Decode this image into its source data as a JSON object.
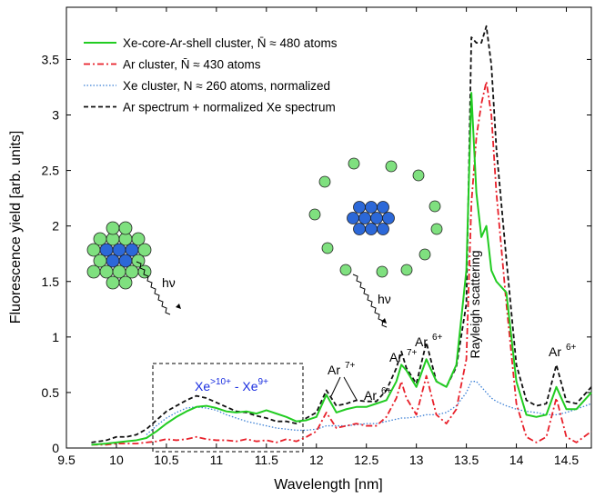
{
  "chart_data": {
    "type": "line",
    "x_label": "Wavelength [nm]",
    "y_label": "Fluorescence yield [arb. units]",
    "xlim": [
      9.5,
      14.75
    ],
    "ylim": [
      0,
      3.97
    ],
    "xticks": [
      9.5,
      10,
      10.5,
      11,
      11.5,
      12,
      12.5,
      13,
      13.5,
      14,
      14.5
    ],
    "yticks": [
      0,
      0.5,
      1,
      1.5,
      2,
      2.5,
      3,
      3.5
    ],
    "legend": "upper left",
    "grid": false,
    "x": [
      9.75,
      9.9,
      10.0,
      10.1,
      10.2,
      10.3,
      10.4,
      10.5,
      10.6,
      10.7,
      10.8,
      10.9,
      11.0,
      11.1,
      11.2,
      11.3,
      11.4,
      11.5,
      11.6,
      11.7,
      11.8,
      11.9,
      12.0,
      12.1,
      12.2,
      12.3,
      12.4,
      12.5,
      12.6,
      12.7,
      12.8,
      12.85,
      12.9,
      13.0,
      13.1,
      13.2,
      13.3,
      13.4,
      13.5,
      13.55,
      13.6,
      13.65,
      13.7,
      13.75,
      13.8,
      13.9,
      14.0,
      14.1,
      14.2,
      14.3,
      14.4,
      14.5,
      14.6,
      14.75
    ],
    "series": [
      {
        "name": "Xe-core-Ar-shell cluster, N̄ ≈ 480 atoms",
        "color": "#22cc22",
        "dash": "none",
        "width": 2,
        "values": [
          0.03,
          0.04,
          0.05,
          0.06,
          0.07,
          0.09,
          0.15,
          0.22,
          0.28,
          0.33,
          0.37,
          0.38,
          0.36,
          0.33,
          0.32,
          0.33,
          0.31,
          0.34,
          0.31,
          0.28,
          0.24,
          0.25,
          0.28,
          0.48,
          0.32,
          0.35,
          0.37,
          0.37,
          0.4,
          0.43,
          0.6,
          0.75,
          0.7,
          0.55,
          0.8,
          0.6,
          0.55,
          0.75,
          1.6,
          3.2,
          2.3,
          1.9,
          2.0,
          1.6,
          1.5,
          1.4,
          0.6,
          0.3,
          0.28,
          0.3,
          0.55,
          0.35,
          0.35,
          0.5
        ]
      },
      {
        "name": "Ar cluster, N̄ ≈ 430 atoms",
        "color": "#e8202a",
        "dash": "7,3,2,3",
        "width": 1.8,
        "values": [
          0.03,
          0.03,
          0.04,
          0.04,
          0.04,
          0.05,
          0.06,
          0.08,
          0.07,
          0.08,
          0.1,
          0.08,
          0.07,
          0.07,
          0.06,
          0.08,
          0.06,
          0.07,
          0.05,
          0.08,
          0.06,
          0.1,
          0.15,
          0.32,
          0.18,
          0.2,
          0.22,
          0.2,
          0.2,
          0.28,
          0.45,
          0.6,
          0.45,
          0.3,
          0.65,
          0.3,
          0.22,
          0.35,
          0.8,
          2.2,
          2.8,
          3.1,
          3.3,
          3.0,
          2.3,
          1.3,
          0.4,
          0.1,
          0.05,
          0.1,
          0.45,
          0.1,
          0.05,
          0.15
        ]
      },
      {
        "name": "Xe cluster,  N ≈ 260 atoms, normalized",
        "color": "#3a7fd5",
        "dash": "1.5,2",
        "width": 1.3,
        "values": [
          null,
          null,
          null,
          null,
          null,
          0.12,
          0.2,
          0.27,
          0.32,
          0.36,
          0.37,
          0.36,
          0.34,
          0.3,
          0.27,
          0.24,
          0.22,
          0.2,
          0.18,
          0.17,
          0.16,
          0.16,
          0.17,
          0.2,
          0.2,
          0.2,
          0.21,
          0.22,
          0.22,
          0.24,
          0.26,
          0.27,
          0.27,
          0.28,
          0.3,
          0.3,
          0.32,
          0.38,
          0.5,
          0.6,
          0.6,
          0.55,
          0.5,
          0.45,
          0.42,
          0.38,
          0.35,
          0.33,
          0.32,
          0.3,
          0.3,
          0.32,
          0.35,
          0.4
        ]
      },
      {
        "name": "Ar spectrum + normalized Xe spectrum",
        "color": "#111111",
        "dash": "5,3",
        "width": 1.8,
        "values": [
          0.05,
          0.07,
          0.1,
          0.1,
          0.12,
          0.17,
          0.25,
          0.33,
          0.38,
          0.43,
          0.47,
          0.45,
          0.41,
          0.37,
          0.33,
          0.32,
          0.29,
          0.27,
          0.24,
          0.24,
          0.22,
          0.27,
          0.32,
          0.52,
          0.38,
          0.4,
          0.43,
          0.42,
          0.42,
          0.52,
          0.72,
          0.87,
          0.72,
          0.58,
          0.95,
          0.6,
          0.55,
          0.73,
          1.3,
          3.7,
          3.65,
          3.65,
          3.8,
          3.45,
          2.7,
          1.7,
          0.75,
          0.43,
          0.38,
          0.4,
          0.75,
          0.42,
          0.4,
          0.55
        ]
      }
    ],
    "annotations": [
      {
        "text": "Ar",
        "sup": "7+"
      },
      {
        "text": "Ar",
        "sup": "6+"
      },
      {
        "text": "Ar",
        "sup": "7+"
      },
      {
        "text": "Ar",
        "sup": "6+"
      },
      {
        "text": "Ar",
        "sup": "6+"
      }
    ],
    "xe_annotation": {
      "text": "Xe",
      "sup": ">10+",
      "text2": " - Xe",
      "sup2": "9+",
      "color": "#1a2ee0"
    },
    "rayleigh": "Rayleigh scattering",
    "photon_labels": [
      "hν",
      "hν"
    ]
  }
}
